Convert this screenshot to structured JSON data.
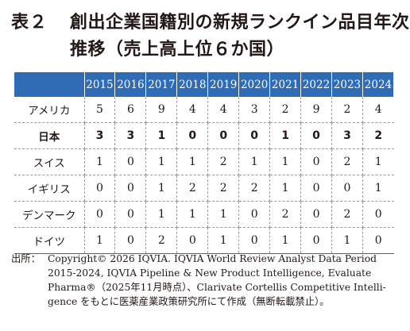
{
  "title": {
    "label": "表２",
    "lines": [
      "創出企業国籍別の新規ランクイン品目年次",
      "推移（売上高上位６か国）"
    ]
  },
  "table": {
    "years": [
      "2015",
      "2016",
      "2017",
      "2018",
      "2019",
      "2020",
      "2021",
      "2022",
      "2023",
      "2024"
    ],
    "rows": [
      {
        "country": "アメリカ",
        "values": [
          "5",
          "6",
          "9",
          "4",
          "4",
          "3",
          "2",
          "9",
          "2",
          "4"
        ]
      },
      {
        "country": "日本",
        "values": [
          "3",
          "3",
          "1",
          "0",
          "0",
          "0",
          "1",
          "0",
          "3",
          "2"
        ]
      },
      {
        "country": "スイス",
        "values": [
          "1",
          "0",
          "1",
          "1",
          "2",
          "1",
          "1",
          "0",
          "2",
          "1"
        ]
      },
      {
        "country": "イギリス",
        "values": [
          "0",
          "0",
          "1",
          "2",
          "2",
          "2",
          "1",
          "0",
          "0",
          "1"
        ]
      },
      {
        "country": "デンマーク",
        "values": [
          "0",
          "0",
          "1",
          "1",
          "1",
          "0",
          "2",
          "0",
          "2",
          "0"
        ]
      },
      {
        "country": "ドイツ",
        "values": [
          "1",
          "0",
          "2",
          "0",
          "1",
          "0",
          "1",
          "0",
          "1",
          "0"
        ]
      }
    ]
  },
  "source": {
    "label": "出所：",
    "lines": [
      "Copyright© 2026 IQVIA. IQVIA World Review Analyst Data Period",
      "2015-2024, IQVIA Pipeline & New Product Intelligence, Evaluate",
      "Pharma®（2025年11月時点）、Clarivate Cortellis Competitive Intelli-",
      "gence をもとに医薬産業政策研究所にて作成（無断転載禁止）。"
    ]
  }
}
